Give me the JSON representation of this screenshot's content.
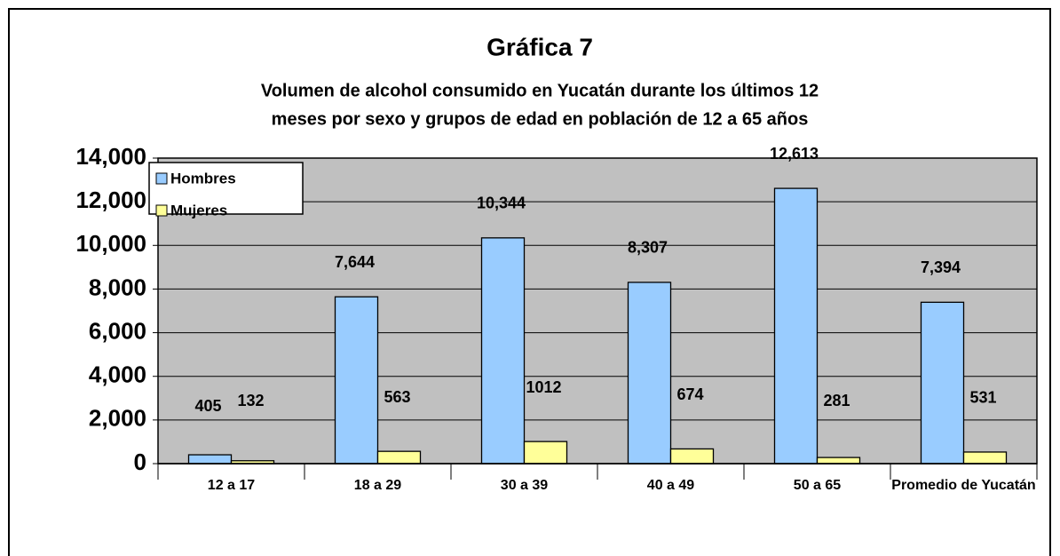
{
  "chart_data": {
    "type": "bar",
    "title": "Gráfica 7",
    "subtitle": [
      "Volumen de alcohol consumido en Yucatán durante los últimos 12",
      "meses por sexo y grupos de edad en población de 12 a 65 años"
    ],
    "categories": [
      "12 a 17",
      "18 a 29",
      "30 a 39",
      "40 a 49",
      "50 a 65",
      "Promedio de Yucatán"
    ],
    "series": [
      {
        "name": "Hombres",
        "color": "#99ccff",
        "values": [
          405,
          7644,
          10344,
          8307,
          12613,
          7394
        ],
        "value_labels": [
          "405",
          "7,644",
          "10,344",
          "8,307",
          "12,613",
          "7,394"
        ]
      },
      {
        "name": "Mujeres",
        "color": "#ffff99",
        "values": [
          132,
          563,
          1012,
          674,
          281,
          531
        ]
      }
    ],
    "ylim": [
      0,
      14000
    ],
    "yticks": [
      0,
      {
        "value": 2000,
        "label": "2,000"
      },
      {
        "value": 4000,
        "label": "4,000"
      },
      {
        "value": 6000,
        "label": "6,000"
      },
      {
        "value": 8000,
        "label": "8,000"
      },
      {
        "value": 10000,
        "label": "10,000"
      },
      {
        "value": 12000,
        "label": "12,000"
      },
      {
        "value": 14000,
        "label": "14,000"
      }
    ],
    "grid": true,
    "legend": "top-left",
    "plot_background": "#c0c0c0"
  }
}
